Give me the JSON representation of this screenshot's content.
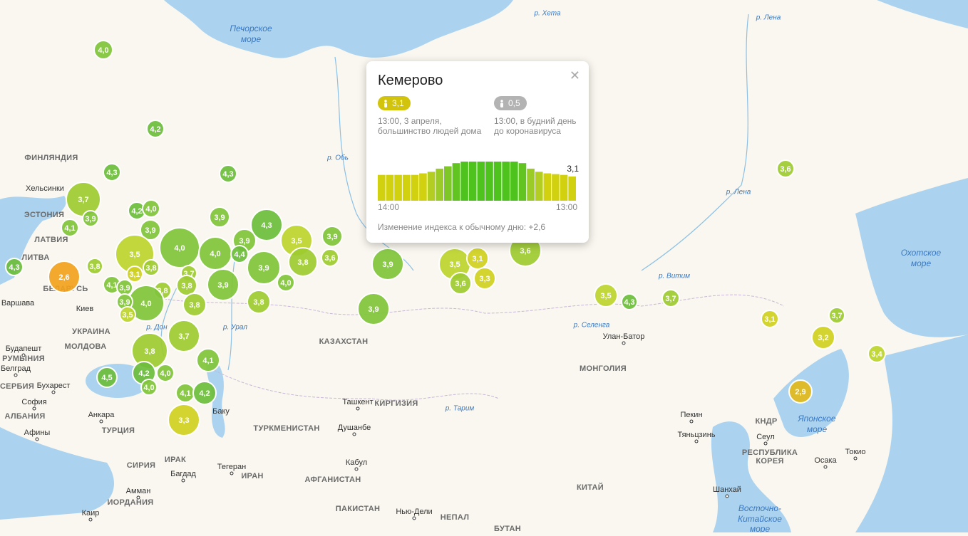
{
  "markers": [
    {
      "value": 4.0,
      "label": "4,0"
    },
    {
      "value": 4.2,
      "label": "4,2"
    },
    {
      "value": 4.3,
      "label": "4,3"
    },
    {
      "value": 4.3,
      "label": "4,3"
    },
    {
      "value": 3.7,
      "label": "3,7"
    },
    {
      "value": 4.2,
      "label": "4,2"
    },
    {
      "value": 4.0,
      "label": "4,0"
    },
    {
      "value": 3.9,
      "label": "3,9"
    },
    {
      "value": 4.1,
      "label": "4,1"
    },
    {
      "value": 3.9,
      "label": "3,9"
    },
    {
      "value": 3.9,
      "label": "3,9"
    },
    {
      "value": 4.3,
      "label": "4,3"
    },
    {
      "value": 3.9,
      "label": "3,9"
    },
    {
      "value": 3.5,
      "label": "3,5"
    },
    {
      "value": 3.9,
      "label": "3,9"
    },
    {
      "value": 4.0,
      "label": "4,0"
    },
    {
      "value": 3.5,
      "label": "3,5"
    },
    {
      "value": 4.0,
      "label": "4,0"
    },
    {
      "value": 4.4,
      "label": "4,4"
    },
    {
      "value": 3.6,
      "label": "3,6"
    },
    {
      "value": 4.3,
      "label": "4,3"
    },
    {
      "value": 3.8,
      "label": "3,8"
    },
    {
      "value": 3.9,
      "label": "3,9"
    },
    {
      "value": 3.8,
      "label": "3,8"
    },
    {
      "value": 2.6,
      "label": "2,6"
    },
    {
      "value": 3.7,
      "label": "3,7"
    },
    {
      "value": 3.1,
      "label": "3,1"
    },
    {
      "value": 3.8,
      "label": "3,8"
    },
    {
      "value": 3.9,
      "label": "3,9"
    },
    {
      "value": 4.0,
      "label": "4,0"
    },
    {
      "value": 4.1,
      "label": "4,1"
    },
    {
      "value": 3.8,
      "label": "3,8"
    },
    {
      "value": 3.8,
      "label": "3,8"
    },
    {
      "value": 3.9,
      "label": "3,9"
    },
    {
      "value": 4.0,
      "label": "4,0"
    },
    {
      "value": 3.8,
      "label": "3,8"
    },
    {
      "value": 3.8,
      "label": "3,8"
    },
    {
      "value": 3.9,
      "label": "3,9"
    },
    {
      "value": 3.5,
      "label": "3,5"
    },
    {
      "value": 3.7,
      "label": "3,7"
    },
    {
      "value": 3.8,
      "label": "3,8"
    },
    {
      "value": 4.1,
      "label": "4,1"
    },
    {
      "value": 4.2,
      "label": "4,2"
    },
    {
      "value": 4.0,
      "label": "4,0"
    },
    {
      "value": 4.5,
      "label": "4,5"
    },
    {
      "value": 4.0,
      "label": "4,0"
    },
    {
      "value": 4.1,
      "label": "4,1"
    },
    {
      "value": 4.2,
      "label": "4,2"
    },
    {
      "value": 3.3,
      "label": "3,3"
    },
    {
      "value": 3.9,
      "label": "3,9"
    },
    {
      "value": 3.9,
      "label": "3,9"
    },
    {
      "value": 3.5,
      "label": "3,5"
    },
    {
      "value": 3.1,
      "label": "3,1"
    },
    {
      "value": 3.6,
      "label": "3,6"
    },
    {
      "value": 3.3,
      "label": "3,3"
    },
    {
      "value": 3.6,
      "label": "3,6"
    },
    {
      "value": 3.5,
      "label": "3,5"
    },
    {
      "value": 4.3,
      "label": "4,3"
    },
    {
      "value": 3.7,
      "label": "3,7"
    },
    {
      "value": 3.6,
      "label": "3,6"
    },
    {
      "value": 3.1,
      "label": "3,1"
    },
    {
      "value": 3.7,
      "label": "3,7"
    },
    {
      "value": 3.2,
      "label": "3,2"
    },
    {
      "value": 3.4,
      "label": "3,4"
    },
    {
      "value": 2.9,
      "label": "2,9"
    }
  ],
  "places": [
    {
      "name": "Печорское"
    },
    {
      "name": "море"
    },
    {
      "name": "р. Хета"
    },
    {
      "name": "р. Лена"
    },
    {
      "name": "ФИНЛЯНДИЯ"
    },
    {
      "name": "Хельсинки"
    },
    {
      "name": "ЭСТОНИЯ"
    },
    {
      "name": "ЛАТВИЯ"
    },
    {
      "name": "ЛИТВА"
    },
    {
      "name": "БЕЛАРУСЬ"
    },
    {
      "name": "Варшава"
    },
    {
      "name": "Киев"
    },
    {
      "name": "УКРАИНА"
    },
    {
      "name": "МОЛДОВА"
    },
    {
      "name": "Будапешт"
    },
    {
      "name": "РУМЫНИЯ"
    },
    {
      "name": "Белград"
    },
    {
      "name": "СЕРБИЯ"
    },
    {
      "name": "Бухарест"
    },
    {
      "name": "София"
    },
    {
      "name": "АЛБАНИЯ"
    },
    {
      "name": "Анкара"
    },
    {
      "name": "ТУРЦИЯ"
    },
    {
      "name": "Афины"
    },
    {
      "name": "КАЗАХСТАН"
    },
    {
      "name": "МОНГОЛИЯ"
    },
    {
      "name": "Улан-Батор"
    },
    {
      "name": "Ташкент"
    },
    {
      "name": "КИРГИЗИЯ"
    },
    {
      "name": "ТУРКМЕНИСТАН"
    },
    {
      "name": "Душанбе"
    },
    {
      "name": "Баку"
    },
    {
      "name": "Тегеран"
    },
    {
      "name": "ИРАН"
    },
    {
      "name": "ИРАК"
    },
    {
      "name": "Багдад"
    },
    {
      "name": "СИРИЯ"
    },
    {
      "name": "Амман"
    },
    {
      "name": "ИОРДАНИЯ"
    },
    {
      "name": "Каир"
    },
    {
      "name": "Кабул"
    },
    {
      "name": "АФГАНИСТАН"
    },
    {
      "name": "ПАКИСТАН"
    },
    {
      "name": "Нью-Дели"
    },
    {
      "name": "НЕПАЛ"
    },
    {
      "name": "БУТАН"
    },
    {
      "name": "КИТАЙ"
    },
    {
      "name": "Пекин"
    },
    {
      "name": "Тяньцзинь"
    },
    {
      "name": "Шанхай"
    },
    {
      "name": "Сеул"
    },
    {
      "name": "КНДР"
    },
    {
      "name": "РЕСПУБЛИКА"
    },
    {
      "name": "КОРЕЯ"
    },
    {
      "name": "Осака"
    },
    {
      "name": "Токио"
    },
    {
      "name": "Японское"
    },
    {
      "name": "море"
    },
    {
      "name": "Охотское"
    },
    {
      "name": "море"
    },
    {
      "name": "Восточно-"
    },
    {
      "name": "Китайское"
    },
    {
      "name": "море"
    },
    {
      "name": "р. Обь"
    },
    {
      "name": "р. Урал"
    },
    {
      "name": "р. Дон"
    },
    {
      "name": "р. Лена"
    },
    {
      "name": "р. Витим"
    },
    {
      "name": "р. Селенга"
    },
    {
      "name": "р. Тарим"
    }
  ],
  "popup": {
    "title": "Кемерово",
    "current": {
      "value": "3,1",
      "note": [
        "13:00, 3 апреля,",
        "большинство людей дома"
      ]
    },
    "baseline": {
      "value": "0,5",
      "note": [
        "13:00, в будний день",
        "до коронавируса"
      ]
    },
    "chart": {
      "values": [
        3.3,
        3.3,
        3.3,
        3.3,
        3.3,
        3.5,
        3.7,
        4.1,
        4.4,
        4.8,
        5.0,
        5.0,
        5.0,
        5.0,
        5.0,
        5.0,
        5.0,
        4.8,
        4.1,
        3.7,
        3.5,
        3.4,
        3.3,
        3.1
      ],
      "start": "14:00",
      "end": "13:00",
      "last_label": "3,1"
    },
    "change": "Изменение индекса к обычному дню: +2,6"
  }
}
